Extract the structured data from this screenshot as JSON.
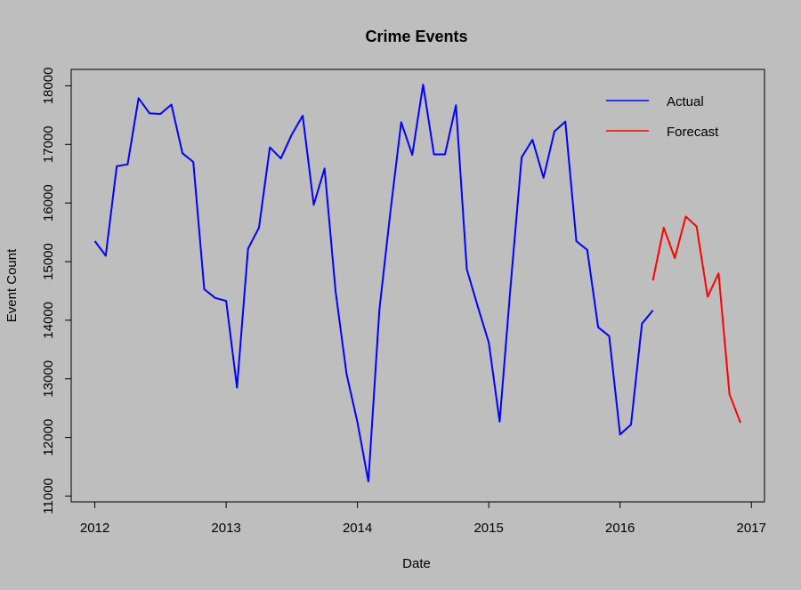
{
  "chart_data": {
    "type": "line",
    "title": "Crime Events",
    "xlabel": "Date",
    "ylabel": "Event Count",
    "xlim": [
      2011.82,
      2017.1
    ],
    "ylim": [
      10900,
      18280
    ],
    "x_ticks": [
      2012,
      2013,
      2014,
      2015,
      2016,
      2017
    ],
    "y_ticks": [
      11000,
      12000,
      13000,
      14000,
      15000,
      16000,
      17000,
      18000
    ],
    "legend_position": "top-right",
    "grid": false,
    "series": [
      {
        "name": "Actual",
        "color": "#0000ff",
        "x": [
          2012.0,
          2012.083,
          2012.167,
          2012.25,
          2012.333,
          2012.417,
          2012.5,
          2012.583,
          2012.667,
          2012.75,
          2012.833,
          2012.917,
          2013.0,
          2013.083,
          2013.167,
          2013.25,
          2013.333,
          2013.417,
          2013.5,
          2013.583,
          2013.667,
          2013.75,
          2013.833,
          2013.917,
          2014.0,
          2014.083,
          2014.167,
          2014.25,
          2014.333,
          2014.417,
          2014.5,
          2014.583,
          2014.667,
          2014.75,
          2014.833,
          2014.917,
          2015.0,
          2015.083,
          2015.167,
          2015.25,
          2015.333,
          2015.417,
          2015.5,
          2015.583,
          2015.667,
          2015.75,
          2015.833,
          2015.917,
          2016.0,
          2016.083,
          2016.167,
          2016.25
        ],
        "values": [
          15350,
          15100,
          16630,
          16660,
          17790,
          17530,
          17520,
          17680,
          16850,
          16700,
          14530,
          14380,
          14330,
          12850,
          15220,
          15580,
          16950,
          16760,
          17170,
          17490,
          15970,
          16590,
          14500,
          13080,
          12260,
          11250,
          14180,
          15830,
          17380,
          16820,
          18020,
          16830,
          16830,
          17670,
          14870,
          14230,
          13620,
          12270,
          14600,
          16780,
          17080,
          16430,
          17220,
          17390,
          15350,
          15200,
          13880,
          13730,
          12050,
          12220,
          13940,
          14170
        ]
      },
      {
        "name": "Forecast",
        "color": "#ff0000",
        "x": [
          2016.25,
          2016.333,
          2016.417,
          2016.5,
          2016.583,
          2016.667,
          2016.75,
          2016.833,
          2016.917
        ],
        "values": [
          14680,
          15580,
          15060,
          15770,
          15600,
          14400,
          14800,
          12740,
          12250
        ]
      }
    ]
  }
}
